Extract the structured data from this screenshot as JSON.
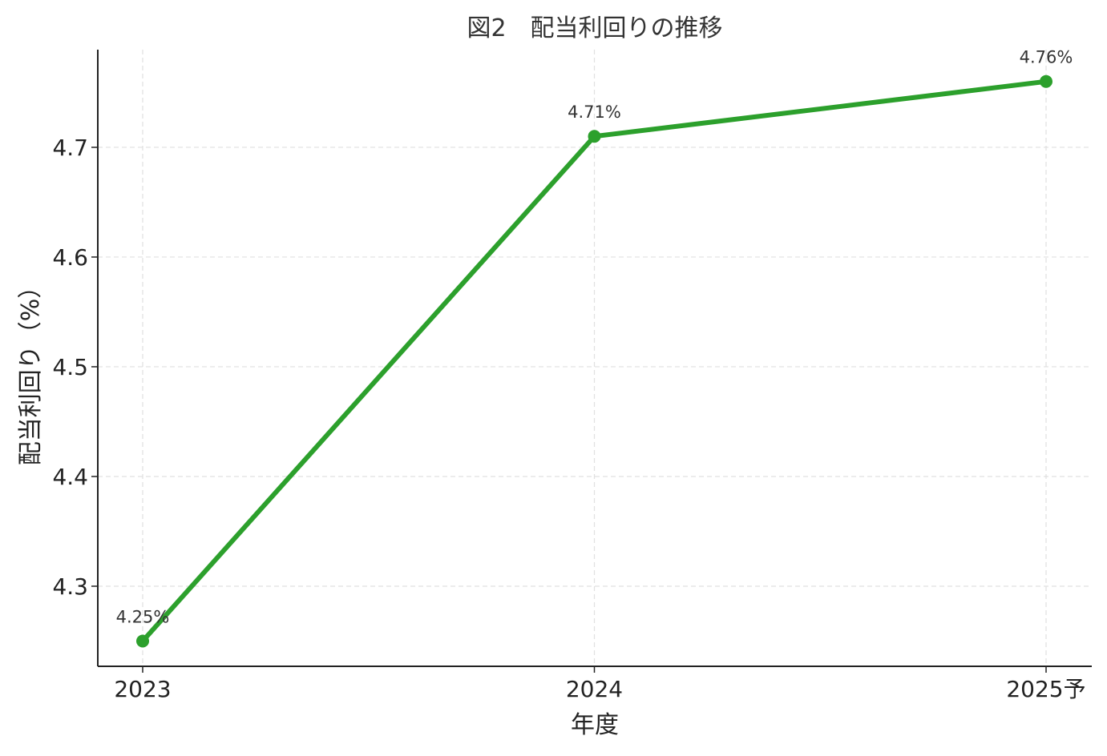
{
  "chart_data": {
    "type": "line",
    "title": "図2　配当利回りの推移",
    "xlabel": "年度",
    "ylabel": "配当利回り（%）",
    "categories": [
      "2023",
      "2024",
      "2025予"
    ],
    "series": [
      {
        "values": [
          4.25,
          4.71,
          4.76
        ],
        "color": "#2ca02c"
      }
    ],
    "data_labels": [
      "4.25%",
      "4.71%",
      "4.76%"
    ],
    "y_ticks": [
      4.3,
      4.4,
      4.5,
      4.6,
      4.7
    ],
    "y_tick_labels": [
      "4.3",
      "4.4",
      "4.5",
      "4.6",
      "4.7"
    ],
    "ylim": [
      4.227,
      4.789
    ],
    "grid": true,
    "legend": "none"
  }
}
